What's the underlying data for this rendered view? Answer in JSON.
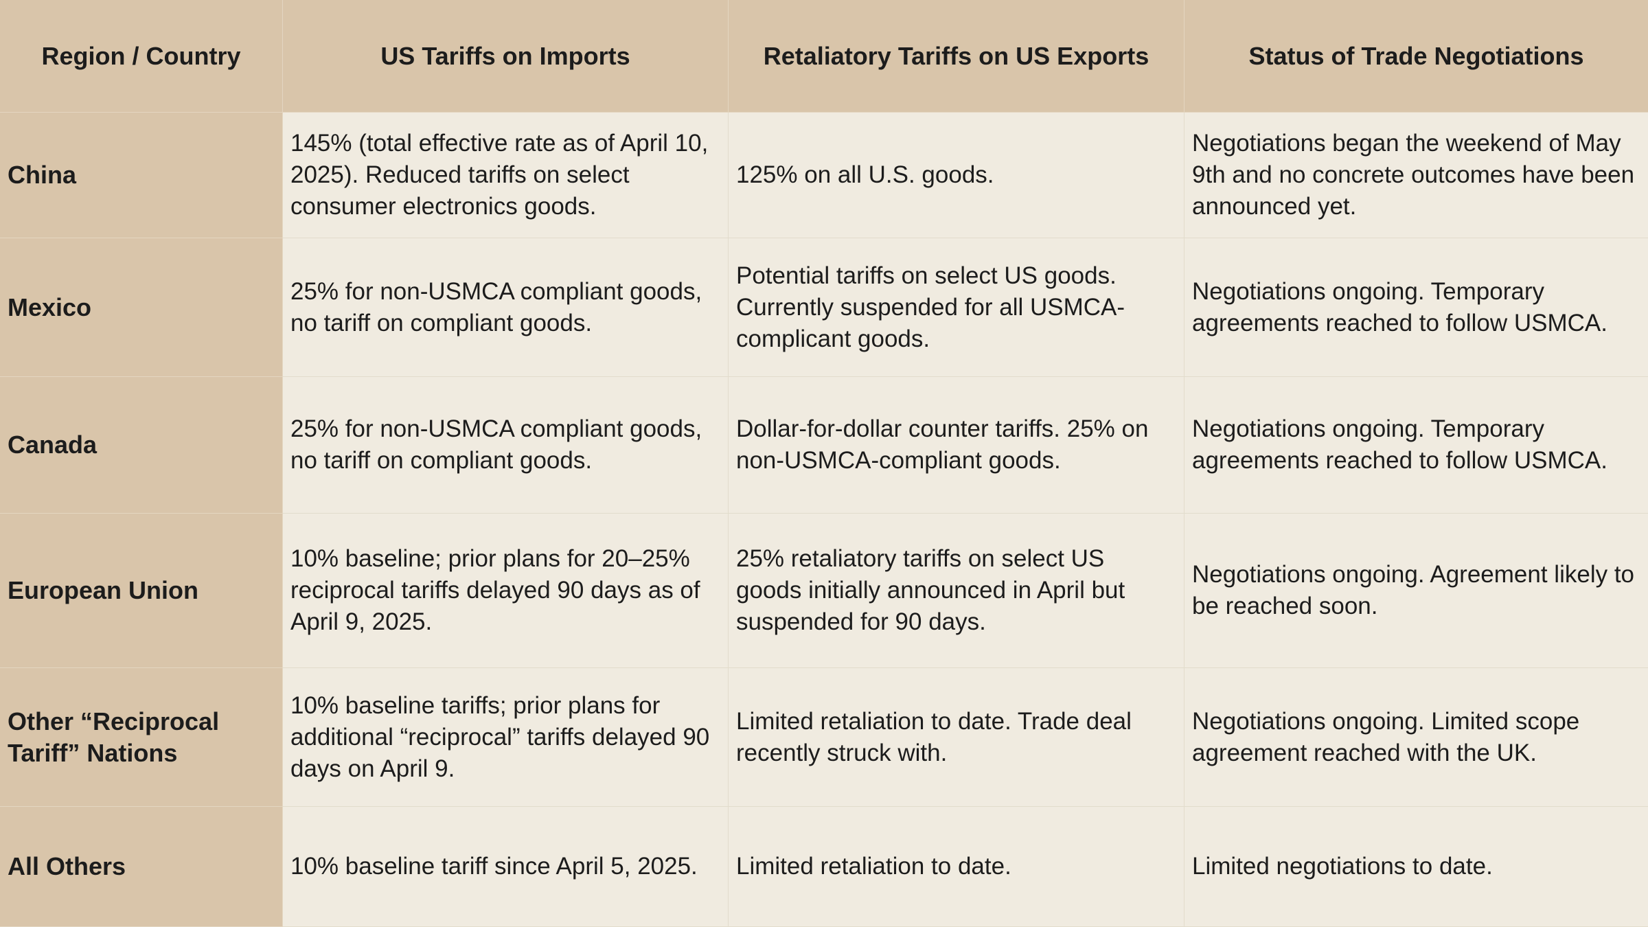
{
  "headers": [
    "Region / Country",
    "US Tariffs on Imports",
    "Retaliatory Tariffs on US Exports",
    "Status of Trade Negotiations"
  ],
  "rows": [
    {
      "region": "China",
      "us_tariffs": "145% (total effective rate as of April 10, 2025). Reduced tariffs on select consumer electronics goods.",
      "retaliatory": "125% on all U.S. goods.",
      "status": "Negotiations began the weekend of May 9th and no concrete outcomes have been announced yet."
    },
    {
      "region": "Mexico",
      "us_tariffs": "25% for non-USMCA compliant goods, no tariff on compliant goods.",
      "retaliatory": "Potential tariffs on select US goods. Currently suspended for all USMCA-complicant goods.",
      "status": "Negotiations ongoing. Temporary agreements reached to follow USMCA."
    },
    {
      "region": "Canada",
      "us_tariffs": "25% for non-USMCA compliant goods, no tariff on compliant goods.",
      "retaliatory": "Dollar-for-dollar counter tariffs. 25% on non-USMCA-compliant goods.",
      "status": "Negotiations ongoing. Temporary agreements reached to follow USMCA."
    },
    {
      "region": "European Union",
      "us_tariffs": "10% baseline; prior plans for 20–25% reciprocal tariffs delayed 90 days as of April 9, 2025.",
      "retaliatory": "25% retaliatory tariffs on select US goods initially announced in April but suspended for 90 days.",
      "status": "Negotiations ongoing. Agreement likely to be reached soon."
    },
    {
      "region": "Other “Reciprocal Tariff” Nations",
      "us_tariffs": "10% baseline tariffs; prior plans for additional “reciprocal” tariffs delayed 90 days on April 9.",
      "retaliatory": "Limited retaliation to date. Trade deal recently struck with.",
      "status": "Negotiations ongoing. Limited scope agreement reached with the UK."
    },
    {
      "region": "All Others",
      "us_tariffs": "10% baseline tariff since April 5, 2025.",
      "retaliatory": "Limited retaliation to date.",
      "status": "Limited negotiations to date."
    }
  ]
}
